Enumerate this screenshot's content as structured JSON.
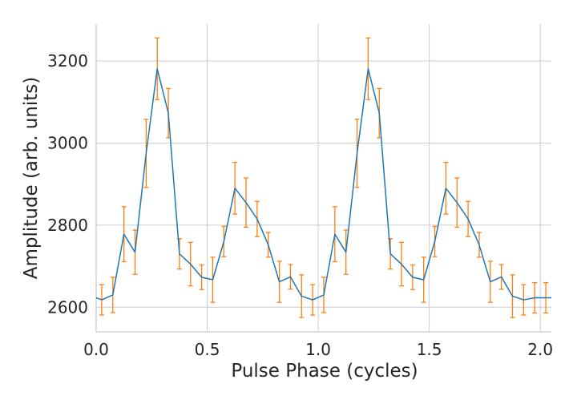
{
  "chart_data": {
    "type": "line",
    "title": "",
    "xlabel": "Pulse Phase (cycles)",
    "ylabel": "Amplitude (arb. units)",
    "xlim": [
      0.0,
      2.05
    ],
    "ylim": [
      2540,
      3290
    ],
    "xticks": [
      0.0,
      0.5,
      1.0,
      1.5,
      2.0
    ],
    "xtick_labels": [
      "0.0",
      "0.5",
      "1.0",
      "1.5",
      "2.0"
    ],
    "yticks": [
      2600,
      2800,
      3000,
      3200
    ],
    "ytick_labels": [
      "2600",
      "2800",
      "3000",
      "3200"
    ],
    "grid": true,
    "line_color": "#1f77b4",
    "errorbar_color": "#ff7f0e",
    "series": [
      {
        "x": [
          0.0,
          0.025,
          0.075,
          0.125,
          0.175,
          0.225,
          0.275,
          0.325,
          0.375,
          0.425,
          0.475,
          0.525,
          0.575,
          0.625,
          0.675,
          0.725,
          0.775,
          0.825,
          0.875,
          0.925,
          0.975,
          1.025,
          1.075,
          1.125,
          1.175,
          1.225,
          1.275,
          1.325,
          1.375,
          1.425,
          1.475,
          1.525,
          1.575,
          1.625,
          1.675,
          1.725,
          1.775,
          1.825,
          1.875,
          1.925,
          1.975,
          2.025,
          2.05
        ],
        "y": [
          2623,
          2618,
          2630,
          2778,
          2734,
          2975,
          3181,
          3073,
          2730,
          2705,
          2673,
          2667,
          2760,
          2890,
          2855,
          2815,
          2752,
          2662,
          2674,
          2627,
          2618,
          2630,
          2778,
          2734,
          2975,
          3181,
          3073,
          2730,
          2705,
          2673,
          2667,
          2760,
          2890,
          2855,
          2815,
          2752,
          2662,
          2674,
          2627,
          2618,
          2623,
          2623,
          2623
        ],
        "yerr": [
          0,
          37,
          43,
          67,
          54,
          83,
          75,
          60,
          37,
          53,
          30,
          55,
          37,
          63,
          60,
          43,
          30,
          50,
          30,
          52,
          37,
          43,
          67,
          54,
          83,
          75,
          60,
          37,
          53,
          30,
          55,
          37,
          63,
          60,
          43,
          30,
          50,
          30,
          52,
          37,
          37,
          37,
          0
        ]
      }
    ]
  }
}
